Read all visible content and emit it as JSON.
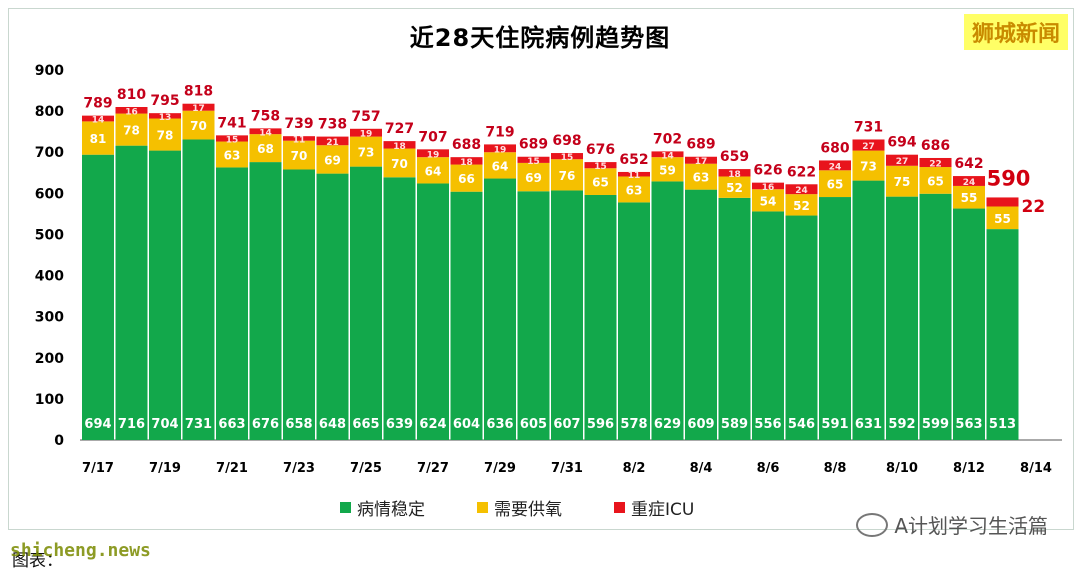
{
  "brand": "狮城新闻",
  "watermark_text": "A计划学习生活篇",
  "site_text": "shicheng.news",
  "caption_text": "图表：",
  "chart_data": {
    "type": "bar",
    "stacked": true,
    "title": "近28天住院病例趋势图",
    "dates": [
      "7/17",
      "7/18",
      "7/19",
      "7/20",
      "7/21",
      "7/22",
      "7/23",
      "7/24",
      "7/25",
      "7/26",
      "7/27",
      "7/28",
      "7/29",
      "7/30",
      "7/31",
      "8/1",
      "8/2",
      "8/3",
      "8/4",
      "8/5",
      "8/6",
      "8/7",
      "8/8",
      "8/9",
      "8/10",
      "8/11",
      "8/12",
      "8/13"
    ],
    "x_tick_labels": [
      "7/17",
      "7/19",
      "7/21",
      "7/23",
      "7/25",
      "7/27",
      "7/29",
      "7/31",
      "8/2",
      "8/4",
      "8/6",
      "8/8",
      "8/10",
      "8/12",
      "8/14"
    ],
    "ylim": [
      0,
      900
    ],
    "yticks": [
      0,
      100,
      200,
      300,
      400,
      500,
      600,
      700,
      800,
      900
    ],
    "totals": [
      789,
      810,
      795,
      818,
      741,
      758,
      739,
      738,
      757,
      727,
      707,
      688,
      719,
      689,
      698,
      676,
      652,
      702,
      689,
      659,
      626,
      622,
      680,
      731,
      694,
      686,
      642,
      590
    ],
    "series": [
      {
        "name": "病情稳定",
        "color": "#12a84b",
        "values": [
          694,
          716,
          704,
          731,
          663,
          676,
          658,
          648,
          665,
          639,
          624,
          604,
          636,
          605,
          607,
          596,
          578,
          629,
          609,
          589,
          556,
          546,
          591,
          631,
          592,
          599,
          563,
          513
        ]
      },
      {
        "name": "需要供氧",
        "color": "#f5c000",
        "values": [
          81,
          78,
          78,
          70,
          63,
          68,
          70,
          69,
          73,
          70,
          64,
          66,
          64,
          69,
          76,
          65,
          63,
          59,
          63,
          52,
          54,
          52,
          65,
          73,
          75,
          65,
          55,
          55
        ]
      },
      {
        "name": "重症ICU",
        "color": "#e8141c",
        "values": [
          14,
          16,
          13,
          17,
          15,
          14,
          11,
          21,
          19,
          18,
          19,
          18,
          19,
          15,
          15,
          15,
          11,
          14,
          17,
          18,
          16,
          24,
          24,
          27,
          27,
          22,
          24,
          22
        ]
      }
    ],
    "grid": false,
    "legend_position": "bottom"
  }
}
